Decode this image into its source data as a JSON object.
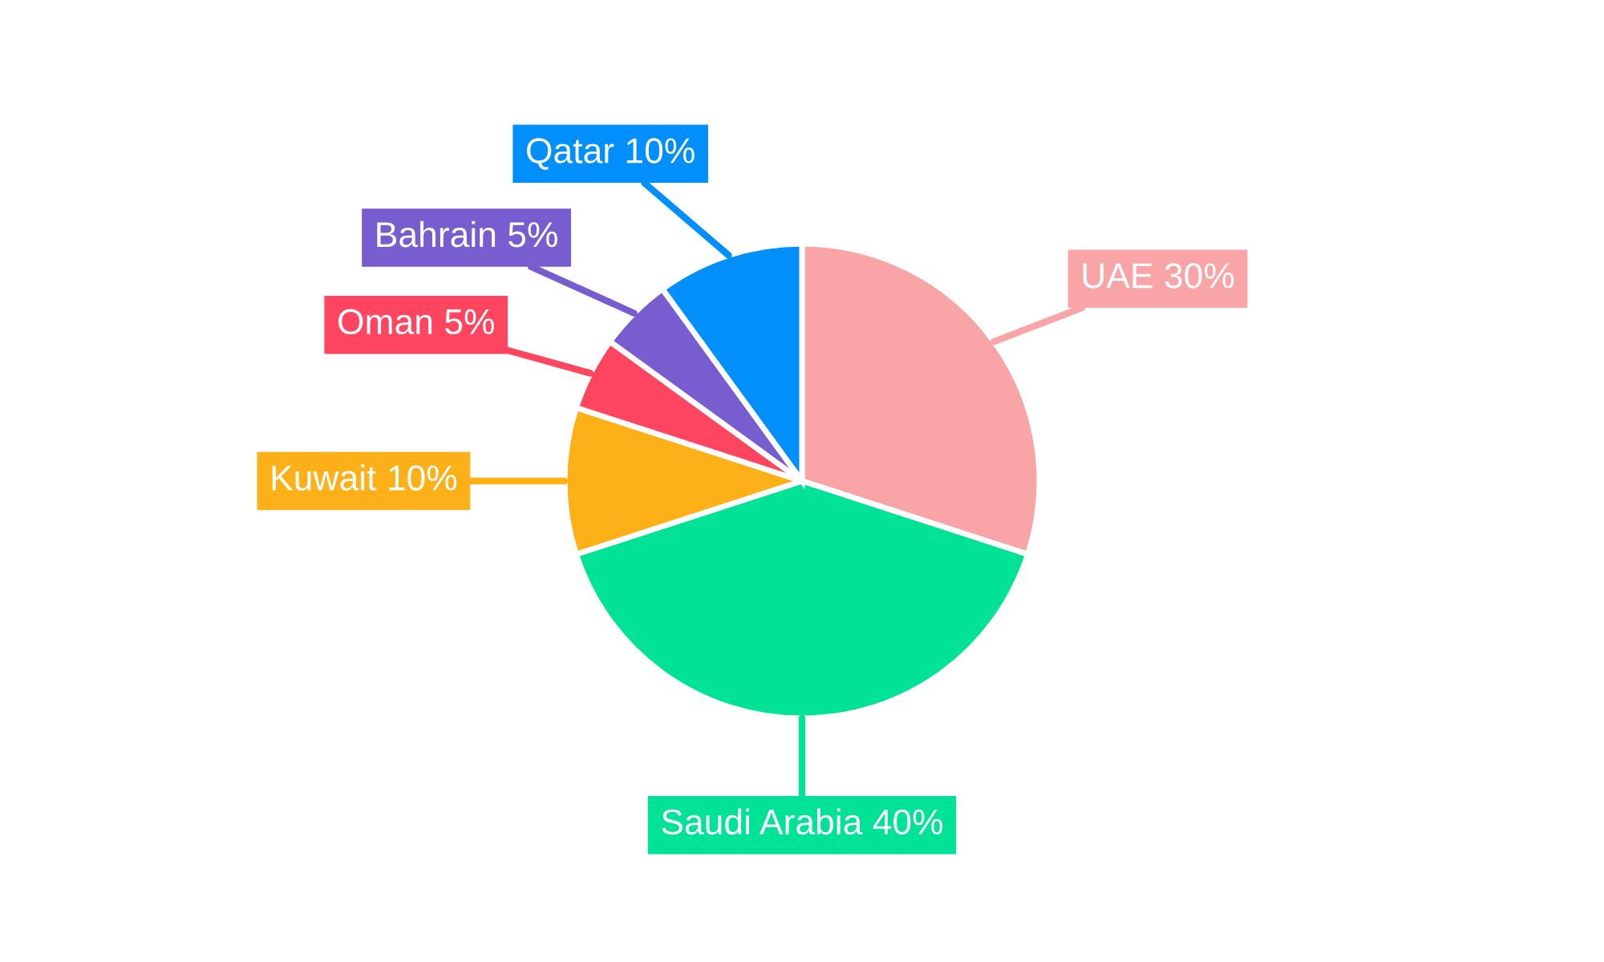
{
  "chart_data": {
    "type": "pie",
    "categories": [
      "UAE",
      "Saudi Arabia",
      "Kuwait",
      "Oman",
      "Bahrain",
      "Qatar"
    ],
    "values": [
      30,
      40,
      10,
      5,
      5,
      10
    ],
    "value_labels": [
      "30%",
      "40%",
      "10%",
      "5%",
      "5%",
      "10%"
    ],
    "colors": [
      "#f9a5a7",
      "#00e396",
      "#feb019",
      "#ff4560",
      "#775dd0",
      "#008ffb"
    ]
  }
}
